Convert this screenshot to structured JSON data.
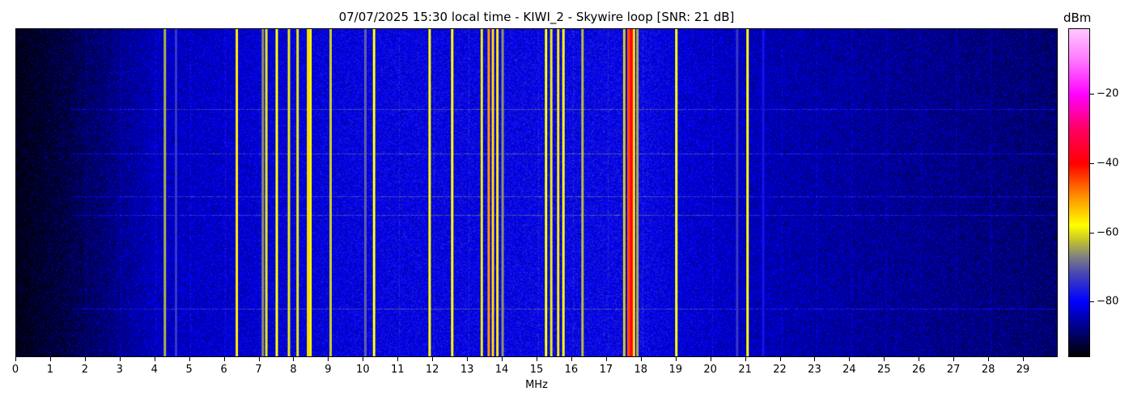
{
  "chart_data": {
    "type": "heatmap",
    "title": "07/07/2025 15:30 local time - KIWI_2 - Skywire loop [SNR: 21 dB]",
    "xlabel": "MHz",
    "ylabel": "",
    "xlim": [
      0,
      30
    ],
    "xticks": [
      "0",
      "1",
      "2",
      "3",
      "4",
      "5",
      "6",
      "7",
      "8",
      "9",
      "10",
      "11",
      "12",
      "13",
      "14",
      "15",
      "16",
      "17",
      "18",
      "19",
      "20",
      "21",
      "22",
      "23",
      "24",
      "25",
      "26",
      "27",
      "28",
      "29"
    ],
    "colorbar": {
      "label": "dBm",
      "range": [
        -96,
        -1
      ],
      "ticks": [
        "−20",
        "−40",
        "−60",
        "−80"
      ],
      "tick_values": [
        -20,
        -40,
        -60,
        -80
      ]
    },
    "colormap": [
      {
        "dbm": -96,
        "color": "#000000"
      },
      {
        "dbm": -88,
        "color": "#000080"
      },
      {
        "dbm": -80,
        "color": "#0000ff"
      },
      {
        "dbm": -72,
        "color": "#4646b4"
      },
      {
        "dbm": -67,
        "color": "#808080"
      },
      {
        "dbm": -62,
        "color": "#c8c828"
      },
      {
        "dbm": -58,
        "color": "#ffff00"
      },
      {
        "dbm": -50,
        "color": "#ff9600"
      },
      {
        "dbm": -40,
        "color": "#ff0000"
      },
      {
        "dbm": -30,
        "color": "#ff0064"
      },
      {
        "dbm": -20,
        "color": "#ff00ff"
      },
      {
        "dbm": -10,
        "color": "#ff78ff"
      },
      {
        "dbm": -1,
        "color": "#ffc8ff"
      }
    ],
    "noise_floor_dbm": [
      {
        "mhz": 0,
        "dbm": -95
      },
      {
        "mhz": 2,
        "dbm": -90
      },
      {
        "mhz": 4,
        "dbm": -84
      },
      {
        "mhz": 10,
        "dbm": -81
      },
      {
        "mhz": 18,
        "dbm": -80
      },
      {
        "mhz": 19,
        "dbm": -82
      },
      {
        "mhz": 22,
        "dbm": -85
      },
      {
        "mhz": 30,
        "dbm": -89
      }
    ],
    "signals": [
      {
        "mhz": 4.28,
        "dbm": -64
      },
      {
        "mhz": 4.6,
        "dbm": -74
      },
      {
        "mhz": 6.35,
        "dbm": -56
      },
      {
        "mhz": 7.1,
        "dbm": -66
      },
      {
        "mhz": 7.2,
        "dbm": -60
      },
      {
        "mhz": 7.5,
        "dbm": -58
      },
      {
        "mhz": 7.85,
        "dbm": -60
      },
      {
        "mhz": 8.1,
        "dbm": -60
      },
      {
        "mhz": 8.4,
        "dbm": -55
      },
      {
        "mhz": 8.47,
        "dbm": -58
      },
      {
        "mhz": 9.05,
        "dbm": -62
      },
      {
        "mhz": 10.05,
        "dbm": -70
      },
      {
        "mhz": 10.3,
        "dbm": -58
      },
      {
        "mhz": 11.9,
        "dbm": -58
      },
      {
        "mhz": 12.55,
        "dbm": -58
      },
      {
        "mhz": 13.4,
        "dbm": -60
      },
      {
        "mhz": 13.6,
        "dbm": -50
      },
      {
        "mhz": 13.72,
        "dbm": -55
      },
      {
        "mhz": 13.85,
        "dbm": -56
      },
      {
        "mhz": 14.0,
        "dbm": -66
      },
      {
        "mhz": 15.25,
        "dbm": -58
      },
      {
        "mhz": 15.4,
        "dbm": -60
      },
      {
        "mhz": 15.6,
        "dbm": -56
      },
      {
        "mhz": 15.75,
        "dbm": -58
      },
      {
        "mhz": 16.3,
        "dbm": -60
      },
      {
        "mhz": 17.5,
        "dbm": -62
      },
      {
        "mhz": 17.62,
        "dbm": -45
      },
      {
        "mhz": 17.7,
        "dbm": -38
      },
      {
        "mhz": 17.78,
        "dbm": -55
      },
      {
        "mhz": 17.88,
        "dbm": -64
      },
      {
        "mhz": 19.0,
        "dbm": -58
      },
      {
        "mhz": 20.75,
        "dbm": -74
      },
      {
        "mhz": 21.05,
        "dbm": -58
      },
      {
        "mhz": 21.5,
        "dbm": -78
      }
    ]
  }
}
